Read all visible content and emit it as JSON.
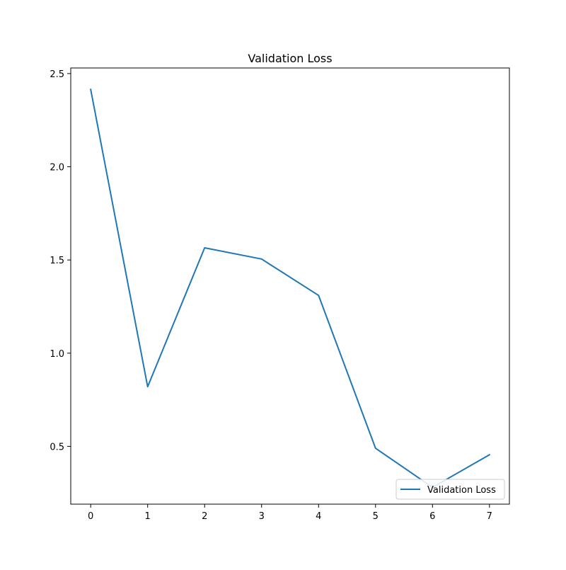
{
  "chart_data": {
    "type": "line",
    "title": "Validation Loss",
    "xlabel": "",
    "ylabel": "",
    "x": [
      0,
      1,
      2,
      3,
      4,
      5,
      6,
      7
    ],
    "series": [
      {
        "name": "Validation Loss",
        "color": "#1f77b4",
        "values": [
          2.415,
          0.82,
          1.565,
          1.505,
          1.31,
          0.49,
          0.28,
          0.455
        ]
      }
    ],
    "xlim": [
      -0.35,
      7.35
    ],
    "ylim": [
      0.19,
      2.53
    ],
    "xticks": [
      0,
      1,
      2,
      3,
      4,
      5,
      6,
      7
    ],
    "yticks": [
      0.5,
      1.0,
      1.5,
      2.0,
      2.5
    ],
    "ytick_labels": [
      "0.5",
      "1.0",
      "1.5",
      "2.0",
      "2.5"
    ],
    "grid": false,
    "legend_position": "lower-right"
  }
}
